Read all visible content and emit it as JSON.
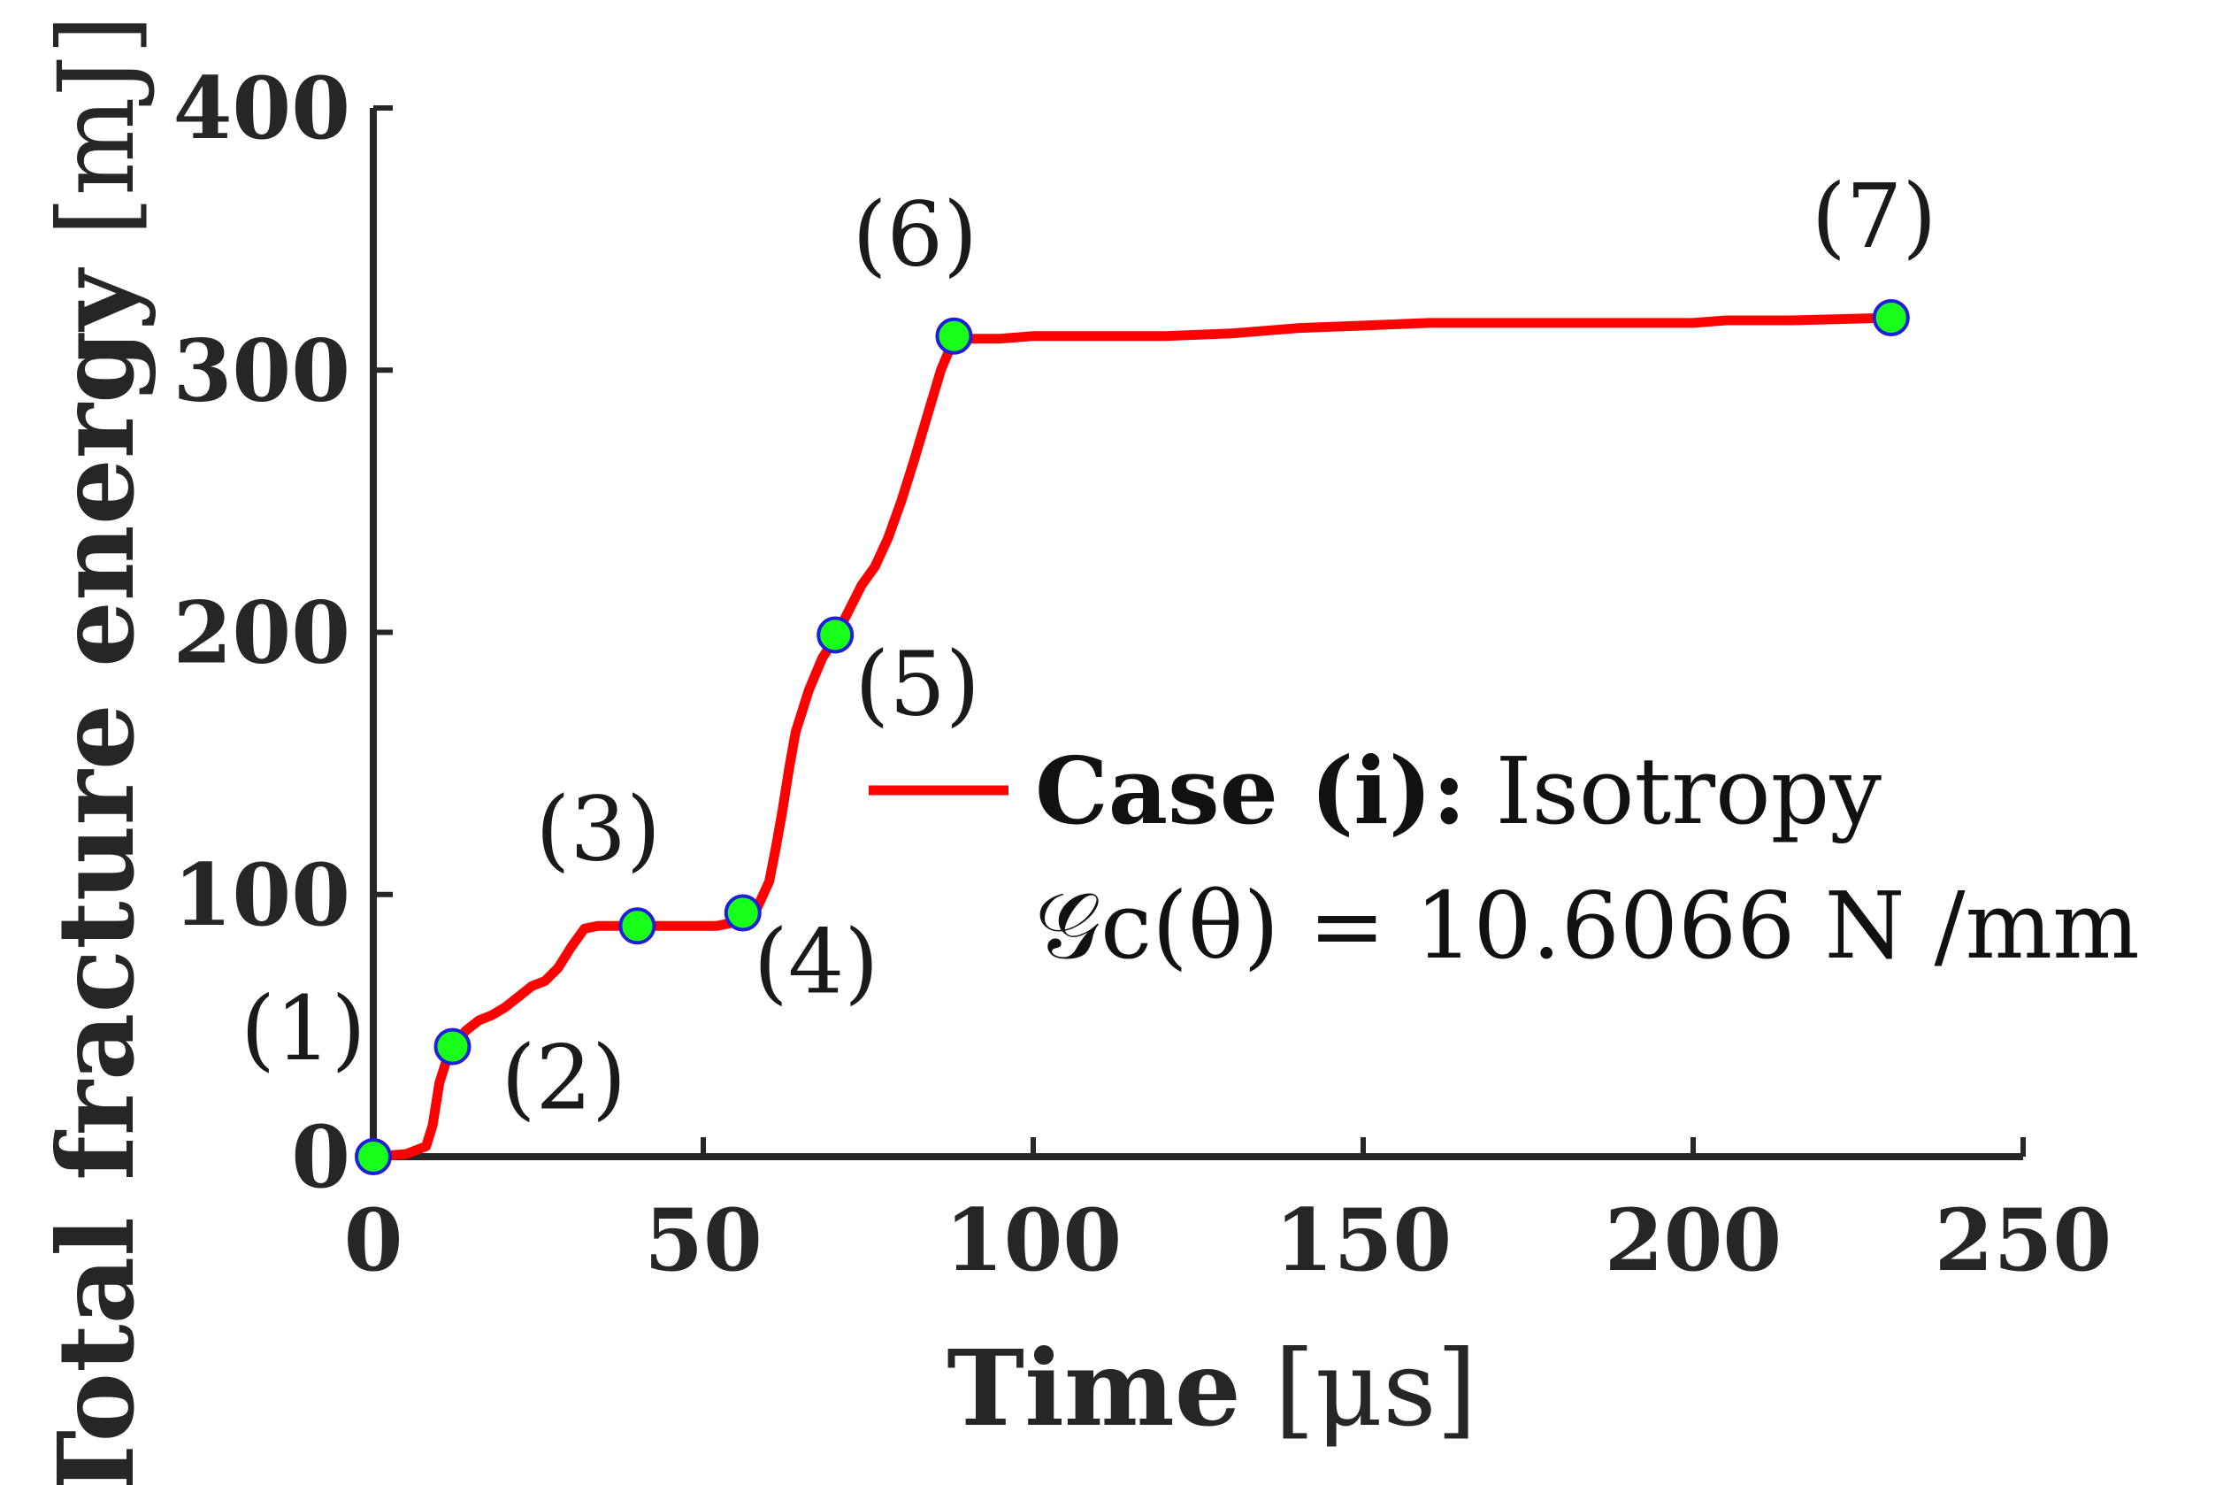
{
  "chart_data": {
    "type": "line",
    "xlabel": {
      "bold": "Time",
      "unit": "[μs]"
    },
    "ylabel": {
      "bold": "Total fracture energy",
      "unit": "[mJ]"
    },
    "xlim": [
      0,
      250
    ],
    "ylim": [
      0,
      400
    ],
    "xticks": [
      "0",
      "50",
      "100",
      "150",
      "200",
      "250"
    ],
    "yticks": [
      "0",
      "100",
      "200",
      "300",
      "400"
    ],
    "grid": false,
    "legend_position": "center-right",
    "series": [
      {
        "name": "Case (i): Isotropy",
        "name_bold": "Case (i):",
        "name_rest": "Isotropy",
        "subtitle": "𝒢c(θ) = 10.6066 N /mm",
        "color": "#ff0000",
        "x": [
          0,
          5,
          8,
          9,
          10,
          11,
          12,
          14,
          16,
          18,
          20,
          22,
          24,
          26,
          28,
          30,
          32,
          34,
          38,
          45,
          52,
          56,
          58,
          60,
          61,
          62,
          63,
          64,
          66,
          68,
          70,
          72,
          74,
          76,
          78,
          80,
          82,
          84,
          86,
          88,
          95,
          100,
          110,
          120,
          130,
          135,
          140,
          150,
          160,
          180,
          200,
          205,
          215,
          230
        ],
        "y": [
          0,
          1,
          4,
          12,
          28,
          36,
          42,
          48,
          52,
          54,
          57,
          61,
          65,
          67,
          72,
          80,
          87,
          88,
          88,
          88,
          88,
          90,
          94,
          105,
          118,
          132,
          148,
          162,
          178,
          190,
          198,
          208,
          218,
          225,
          236,
          250,
          266,
          283,
          300,
          312,
          312,
          313,
          313,
          313,
          314,
          315,
          316,
          317,
          318,
          318,
          318,
          319,
          319,
          320
        ]
      }
    ],
    "markers": [
      {
        "label": "(1)",
        "x": 0,
        "y": 0
      },
      {
        "label": "(2)",
        "x": 12,
        "y": 42
      },
      {
        "label": "(3)",
        "x": 40,
        "y": 88
      },
      {
        "label": "(4)",
        "x": 56,
        "y": 93
      },
      {
        "label": "(5)",
        "x": 70,
        "y": 199
      },
      {
        "label": "(6)",
        "x": 88,
        "y": 313
      },
      {
        "label": "(7)",
        "x": 230,
        "y": 320
      }
    ],
    "marker_style": {
      "fill": "#19ff19",
      "edge": "#1f1fd9"
    }
  }
}
